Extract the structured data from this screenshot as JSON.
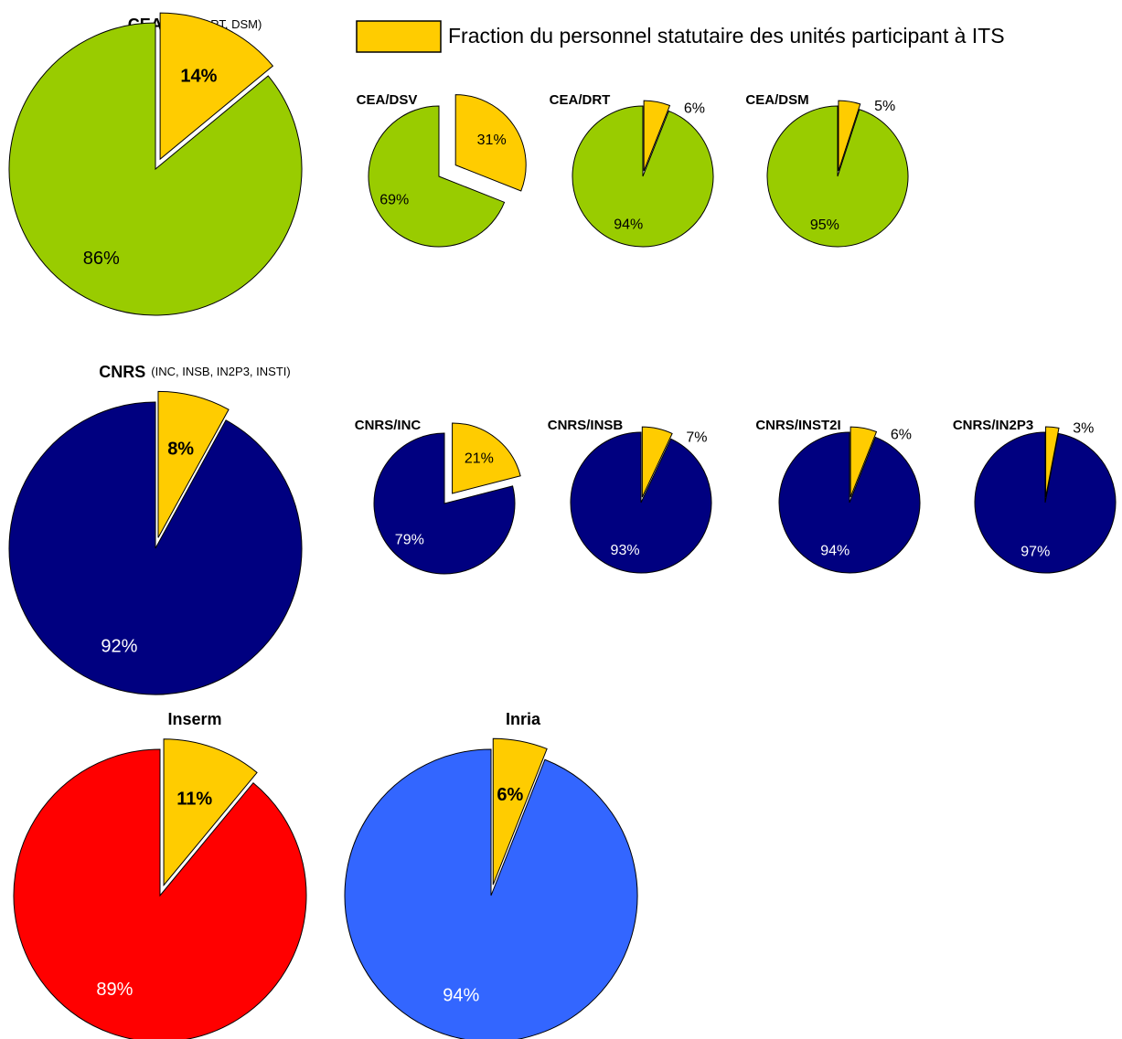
{
  "legend": {
    "text": "Fraction du personnel statutaire des unités participant à ITS",
    "color": "#ffcc00"
  },
  "chart_data": [
    {
      "type": "pie",
      "title": "CEA",
      "subtitle": "(DSV, DRT, DSM)",
      "values": [
        14,
        86
      ],
      "value_labels": [
        "14%",
        "86%"
      ],
      "colors": [
        "#ffcc00",
        "#99cc00"
      ]
    },
    {
      "type": "pie",
      "title": "CEA/DSV",
      "values": [
        31,
        69
      ],
      "value_labels": [
        "31%",
        "69%"
      ],
      "colors": [
        "#ffcc00",
        "#99cc00"
      ]
    },
    {
      "type": "pie",
      "title": "CEA/DRT",
      "values": [
        6,
        94
      ],
      "value_labels": [
        "6%",
        "94%"
      ],
      "colors": [
        "#ffcc00",
        "#99cc00"
      ]
    },
    {
      "type": "pie",
      "title": "CEA/DSM",
      "values": [
        5,
        95
      ],
      "value_labels": [
        "5%",
        "95%"
      ],
      "colors": [
        "#ffcc00",
        "#99cc00"
      ]
    },
    {
      "type": "pie",
      "title": "CNRS",
      "subtitle": "(INC, INSB, IN2P3, INSTI)",
      "values": [
        8,
        92
      ],
      "value_labels": [
        "8%",
        "92%"
      ],
      "colors": [
        "#ffcc00",
        "#000080"
      ]
    },
    {
      "type": "pie",
      "title": "CNRS/INC",
      "values": [
        21,
        79
      ],
      "value_labels": [
        "21%",
        "79%"
      ],
      "colors": [
        "#ffcc00",
        "#000080"
      ]
    },
    {
      "type": "pie",
      "title": "CNRS/INSB",
      "values": [
        7,
        93
      ],
      "value_labels": [
        "7%",
        "93%"
      ],
      "colors": [
        "#ffcc00",
        "#000080"
      ]
    },
    {
      "type": "pie",
      "title": "CNRS/INST2I",
      "values": [
        6,
        94
      ],
      "value_labels": [
        "6%",
        "94%"
      ],
      "colors": [
        "#ffcc00",
        "#000080"
      ]
    },
    {
      "type": "pie",
      "title": "CNRS/IN2P3",
      "values": [
        3,
        97
      ],
      "value_labels": [
        "3%",
        "97%"
      ],
      "colors": [
        "#ffcc00",
        "#000080"
      ]
    },
    {
      "type": "pie",
      "title": "Inserm",
      "values": [
        11,
        89
      ],
      "value_labels": [
        "11%",
        "89%"
      ],
      "colors": [
        "#ffcc00",
        "#ff0000"
      ]
    },
    {
      "type": "pie",
      "title": "Inria",
      "values": [
        6,
        94
      ],
      "value_labels": [
        "6%",
        "94%"
      ],
      "colors": [
        "#ffcc00",
        "#3366ff"
      ]
    }
  ]
}
